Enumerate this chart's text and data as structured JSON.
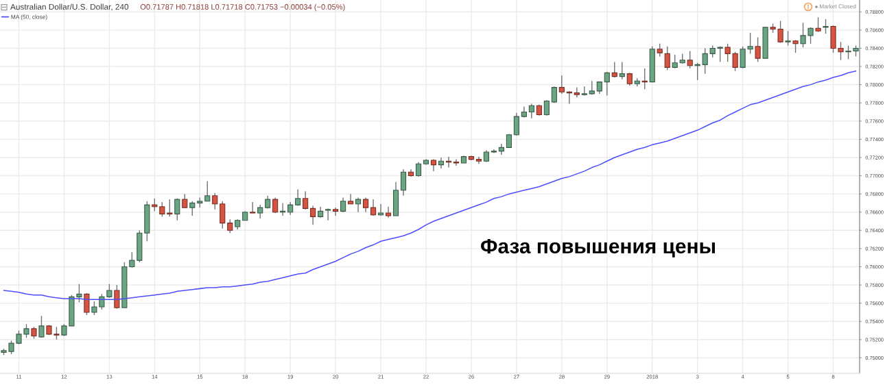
{
  "chart_data": {
    "type": "candlestick",
    "title": "Australian Dollar/U.S. Dollar, 240",
    "subtitle": "O0.71787 H0.71818 L0.71718 C0.71753 −0.00034 (−0.05%)",
    "annotations": [
      "Фаза повышения цены",
      "Market Closed"
    ],
    "categories": [
      null,
      null,
      "11",
      null,
      null,
      null,
      null,
      null,
      "12",
      null,
      null,
      null,
      null,
      null,
      "13",
      null,
      null,
      null,
      null,
      null,
      "14",
      null,
      null,
      null,
      null,
      null,
      "15",
      null,
      null,
      null,
      null,
      null,
      "18",
      null,
      null,
      null,
      null,
      null,
      "19",
      null,
      null,
      null,
      null,
      null,
      "20",
      null,
      null,
      null,
      null,
      null,
      "21",
      null,
      null,
      null,
      null,
      null,
      "22",
      null,
      null,
      null,
      null,
      null,
      "26",
      null,
      null,
      null,
      null,
      null,
      "27",
      null,
      null,
      null,
      null,
      null,
      "28",
      null,
      null,
      null,
      null,
      null,
      "29",
      null,
      null,
      null,
      null,
      null,
      "2018",
      null,
      null,
      null,
      null,
      null,
      "3",
      null,
      null,
      null,
      null,
      null,
      "4",
      null,
      null,
      null,
      null,
      null,
      "5",
      null,
      null,
      null,
      null,
      null,
      "8",
      null,
      null,
      null
    ],
    "ohlc": [
      [
        0.7506,
        0.751,
        0.7503,
        0.7508
      ],
      [
        0.7507,
        0.7519,
        0.7504,
        0.7516
      ],
      [
        0.7516,
        0.753,
        0.7515,
        0.7526
      ],
      [
        0.7526,
        0.7537,
        0.7522,
        0.7532
      ],
      [
        0.7532,
        0.7534,
        0.7521,
        0.7524
      ],
      [
        0.7523,
        0.7546,
        0.7522,
        0.7535
      ],
      [
        0.7535,
        0.7536,
        0.7525,
        0.7526
      ],
      [
        0.7526,
        0.7534,
        0.752,
        0.7525
      ],
      [
        0.7525,
        0.7537,
        0.7524,
        0.7535
      ],
      [
        0.7535,
        0.7569,
        0.7535,
        0.7567
      ],
      [
        0.7567,
        0.7581,
        0.7561,
        0.757
      ],
      [
        0.757,
        0.7571,
        0.7547,
        0.755
      ],
      [
        0.755,
        0.7562,
        0.7547,
        0.7556
      ],
      [
        0.7556,
        0.757,
        0.7553,
        0.7567
      ],
      [
        0.7567,
        0.7581,
        0.7566,
        0.7574
      ],
      [
        0.7574,
        0.758,
        0.7554,
        0.7555
      ],
      [
        0.7555,
        0.7605,
        0.7555,
        0.76
      ],
      [
        0.76,
        0.7616,
        0.7599,
        0.7607
      ],
      [
        0.7607,
        0.764,
        0.7605,
        0.7637
      ],
      [
        0.7637,
        0.7672,
        0.7628,
        0.7668
      ],
      [
        0.7668,
        0.7675,
        0.7661,
        0.7666
      ],
      [
        0.7666,
        0.7671,
        0.7655,
        0.7658
      ],
      [
        0.7659,
        0.7674,
        0.7655,
        0.7658
      ],
      [
        0.7658,
        0.7675,
        0.7651,
        0.7674
      ],
      [
        0.7674,
        0.768,
        0.7665,
        0.7665
      ],
      [
        0.7665,
        0.7672,
        0.7656,
        0.767
      ],
      [
        0.767,
        0.7676,
        0.7665,
        0.7672
      ],
      [
        0.7672,
        0.7694,
        0.7672,
        0.7678
      ],
      [
        0.7678,
        0.7681,
        0.7663,
        0.7669
      ],
      [
        0.7669,
        0.7672,
        0.7642,
        0.7648
      ],
      [
        0.7648,
        0.7652,
        0.7637,
        0.764
      ],
      [
        0.7644,
        0.7652,
        0.7641,
        0.7651
      ],
      [
        0.7651,
        0.7661,
        0.7651,
        0.766
      ],
      [
        0.766,
        0.7671,
        0.7659,
        0.7659
      ],
      [
        0.7659,
        0.7668,
        0.7653,
        0.7665
      ],
      [
        0.7665,
        0.7678,
        0.7664,
        0.7674
      ],
      [
        0.7674,
        0.7676,
        0.7659,
        0.766
      ],
      [
        0.766,
        0.767,
        0.7656,
        0.7661
      ],
      [
        0.766,
        0.7671,
        0.7657,
        0.7668
      ],
      [
        0.7668,
        0.7685,
        0.7667,
        0.7675
      ],
      [
        0.7675,
        0.7683,
        0.7663,
        0.7664
      ],
      [
        0.7664,
        0.7667,
        0.7646,
        0.7655
      ],
      [
        0.7655,
        0.7666,
        0.7654,
        0.7661
      ],
      [
        0.7662,
        0.7664,
        0.7651,
        0.7663
      ],
      [
        0.7663,
        0.7665,
        0.7656,
        0.7661
      ],
      [
        0.7661,
        0.7676,
        0.766,
        0.7672
      ],
      [
        0.7672,
        0.768,
        0.7669,
        0.7669
      ],
      [
        0.7669,
        0.7676,
        0.766,
        0.7674
      ],
      [
        0.7674,
        0.7676,
        0.766,
        0.7665
      ],
      [
        0.7665,
        0.7674,
        0.7656,
        0.7657
      ],
      [
        0.7657,
        0.7669,
        0.7656,
        0.7659
      ],
      [
        0.7659,
        0.7666,
        0.7654,
        0.7656
      ],
      [
        0.7656,
        0.7693,
        0.7656,
        0.7684
      ],
      [
        0.7684,
        0.7707,
        0.7678,
        0.7704
      ],
      [
        0.7704,
        0.7707,
        0.7699,
        0.77
      ],
      [
        0.77,
        0.7715,
        0.7699,
        0.7713
      ],
      [
        0.7713,
        0.7718,
        0.7712,
        0.7717
      ],
      [
        0.7717,
        0.7718,
        0.7705,
        0.7712
      ],
      [
        0.7712,
        0.772,
        0.7708,
        0.7716
      ],
      [
        0.7716,
        0.7721,
        0.7709,
        0.7715
      ],
      [
        0.7715,
        0.7718,
        0.7711,
        0.7714
      ],
      [
        0.7714,
        0.7722,
        0.7714,
        0.7721
      ],
      [
        0.7721,
        0.7722,
        0.7717,
        0.7718
      ],
      [
        0.7718,
        0.7721,
        0.7713,
        0.7716
      ],
      [
        0.7716,
        0.7728,
        0.7715,
        0.7726
      ],
      [
        0.7726,
        0.7729,
        0.7725,
        0.7727
      ],
      [
        0.7727,
        0.7735,
        0.7723,
        0.7731
      ],
      [
        0.7731,
        0.7746,
        0.7731,
        0.7745
      ],
      [
        0.7745,
        0.7769,
        0.7744,
        0.7765
      ],
      [
        0.7765,
        0.7776,
        0.7764,
        0.777
      ],
      [
        0.777,
        0.7779,
        0.7763,
        0.7777
      ],
      [
        0.7777,
        0.7778,
        0.7766,
        0.7767
      ],
      [
        0.7767,
        0.7783,
        0.7766,
        0.7782
      ],
      [
        0.7781,
        0.7798,
        0.778,
        0.7797
      ],
      [
        0.7797,
        0.781,
        0.779,
        0.7792
      ],
      [
        0.7792,
        0.7793,
        0.7779,
        0.7791
      ],
      [
        0.7791,
        0.7797,
        0.7786,
        0.7789
      ],
      [
        0.7789,
        0.7798,
        0.7788,
        0.779
      ],
      [
        0.779,
        0.7804,
        0.7789,
        0.7793
      ],
      [
        0.7793,
        0.7803,
        0.779,
        0.7803
      ],
      [
        0.7803,
        0.7814,
        0.7788,
        0.7813
      ],
      [
        0.7813,
        0.7825,
        0.7808,
        0.7809
      ],
      [
        0.7809,
        0.7825,
        0.7806,
        0.7812
      ],
      [
        0.7812,
        0.7813,
        0.7799,
        0.7801
      ],
      [
        0.7801,
        0.7807,
        0.7798,
        0.7804
      ],
      [
        0.7804,
        0.7818,
        0.7795,
        0.7803
      ],
      [
        0.7803,
        0.7842,
        0.7803,
        0.7839
      ],
      [
        0.7839,
        0.7845,
        0.7831,
        0.7835
      ],
      [
        0.7834,
        0.7842,
        0.7816,
        0.7819
      ],
      [
        0.7819,
        0.7833,
        0.7818,
        0.7824
      ],
      [
        0.7824,
        0.7834,
        0.7823,
        0.7827
      ],
      [
        0.7827,
        0.7837,
        0.7818,
        0.7821
      ],
      [
        0.7821,
        0.7824,
        0.7805,
        0.7822
      ],
      [
        0.7822,
        0.784,
        0.7812,
        0.7834
      ],
      [
        0.7834,
        0.7843,
        0.783,
        0.784
      ],
      [
        0.784,
        0.7842,
        0.7825,
        0.7841
      ],
      [
        0.7841,
        0.7845,
        0.7825,
        0.7834
      ],
      [
        0.7834,
        0.7836,
        0.7815,
        0.7819
      ],
      [
        0.7819,
        0.7842,
        0.7818,
        0.7839
      ],
      [
        0.7839,
        0.7857,
        0.7834,
        0.7842
      ],
      [
        0.7842,
        0.7852,
        0.7825,
        0.7829
      ],
      [
        0.7829,
        0.7863,
        0.7829,
        0.7863
      ],
      [
        0.7863,
        0.7867,
        0.7857,
        0.7861
      ],
      [
        0.7861,
        0.787,
        0.7846,
        0.7847
      ],
      [
        0.7847,
        0.7859,
        0.7843,
        0.7848
      ],
      [
        0.7848,
        0.7849,
        0.7835,
        0.7845
      ],
      [
        0.7845,
        0.7868,
        0.7841,
        0.7854
      ],
      [
        0.7854,
        0.7863,
        0.7845,
        0.7862
      ],
      [
        0.7862,
        0.7874,
        0.7858,
        0.7859
      ],
      [
        0.7863,
        0.7872,
        0.7856,
        0.7864
      ],
      [
        0.7864,
        0.7865,
        0.7835,
        0.784
      ],
      [
        0.784,
        0.7847,
        0.7827,
        0.7836
      ],
      [
        0.7836,
        0.7843,
        0.7828,
        0.7837
      ],
      [
        0.7837,
        0.7843,
        0.7831,
        0.784
      ]
    ],
    "colors": [
      "#6ba583",
      "#6ba583",
      "#6ba583",
      "#6ba583",
      "#d75442",
      "#6ba583",
      "#d75442",
      "#d75442",
      "#6ba583",
      "#6ba583",
      "#6ba583",
      "#d75442",
      "#6ba583",
      "#6ba583",
      "#6ba583",
      "#d75442",
      "#6ba583",
      "#6ba583",
      "#6ba583",
      "#6ba583",
      "#d75442",
      "#d75442",
      "#d75442",
      "#6ba583",
      "#d75442",
      "#6ba583",
      "#6ba583",
      "#6ba583",
      "#d75442",
      "#d75442",
      "#d75442",
      "#6ba583",
      "#6ba583",
      "#d75442",
      "#6ba583",
      "#6ba583",
      "#d75442",
      "#6ba583",
      "#6ba583",
      "#6ba583",
      "#d75442",
      "#d75442",
      "#6ba583",
      "#6ba583",
      "#d75442",
      "#6ba583",
      "#d75442",
      "#6ba583",
      "#d75442",
      "#d75442",
      "#6ba583",
      "#d75442",
      "#6ba583",
      "#6ba583",
      "#d75442",
      "#6ba583",
      "#6ba583",
      "#d75442",
      "#6ba583",
      "#d75442",
      "#d75442",
      "#6ba583",
      "#d75442",
      "#d75442",
      "#6ba583",
      "#6ba583",
      "#6ba583",
      "#6ba583",
      "#6ba583",
      "#6ba583",
      "#6ba583",
      "#d75442",
      "#6ba583",
      "#6ba583",
      "#d75442",
      "#d75442",
      "#d75442",
      "#6ba583",
      "#6ba583",
      "#6ba583",
      "#6ba583",
      "#d75442",
      "#6ba583",
      "#d75442",
      "#6ba583",
      "#d75442",
      "#6ba583",
      "#d75442",
      "#d75442",
      "#6ba583",
      "#6ba583",
      "#d75442",
      "#6ba583",
      "#6ba583",
      "#6ba583",
      "#6ba583",
      "#d75442",
      "#d75442",
      "#6ba583",
      "#6ba583",
      "#d75442",
      "#6ba583",
      "#d75442",
      "#d75442",
      "#6ba583",
      "#d75442",
      "#6ba583",
      "#6ba583",
      "#d75442",
      "#6ba583",
      "#d75442",
      "#d75442",
      "#6ba583",
      "#6ba583"
    ],
    "series": [
      {
        "type": "line",
        "name": "MA (50, close)",
        "color": "#4d4dff",
        "values": [
          0.7574,
          0.7573,
          0.7572,
          0.757,
          0.7569,
          0.7569,
          0.7567,
          0.7566,
          0.7565,
          0.7565,
          0.7565,
          0.7564,
          0.7564,
          0.7564,
          0.7564,
          0.7564,
          0.7565,
          0.7566,
          0.7567,
          0.7568,
          0.7569,
          0.757,
          0.7571,
          0.7573,
          0.7574,
          0.7575,
          0.7576,
          0.7577,
          0.7577,
          0.7578,
          0.7578,
          0.7579,
          0.758,
          0.7581,
          0.7583,
          0.7584,
          0.7586,
          0.7588,
          0.759,
          0.7592,
          0.7593,
          0.7597,
          0.76,
          0.7603,
          0.7606,
          0.761,
          0.7614,
          0.7617,
          0.7621,
          0.7624,
          0.7628,
          0.763,
          0.7632,
          0.7634,
          0.7637,
          0.7641,
          0.7646,
          0.765,
          0.7653,
          0.7656,
          0.7659,
          0.7662,
          0.7665,
          0.7668,
          0.7671,
          0.7675,
          0.7677,
          0.768,
          0.7682,
          0.7684,
          0.7686,
          0.7688,
          0.7691,
          0.7694,
          0.7697,
          0.7699,
          0.7702,
          0.7705,
          0.7709,
          0.7712,
          0.7716,
          0.772,
          0.7723,
          0.7726,
          0.7729,
          0.7731,
          0.7734,
          0.7736,
          0.7738,
          0.7741,
          0.7744,
          0.7747,
          0.775,
          0.7754,
          0.7758,
          0.7761,
          0.7766,
          0.777,
          0.7774,
          0.7778,
          0.778,
          0.7783,
          0.7786,
          0.7789,
          0.7792,
          0.7795,
          0.7798,
          0.78,
          0.7803,
          0.7805,
          0.7808,
          0.781,
          0.7813,
          0.7815
        ]
      }
    ],
    "ylim": [
      0.7483,
      0.7893
    ],
    "yticks": [
      {
        "value": 0.75,
        "label": "0.75000"
      },
      {
        "value": 0.752,
        "label": "0.75200"
      },
      {
        "value": 0.754,
        "label": "0.75400"
      },
      {
        "value": 0.756,
        "label": "0.75600"
      },
      {
        "value": 0.758,
        "label": "0.75800"
      },
      {
        "value": 0.76,
        "label": "0.76000"
      },
      {
        "value": 0.762,
        "label": "0.76200"
      },
      {
        "value": 0.764,
        "label": "0.76400"
      },
      {
        "value": 0.766,
        "label": "0.76600"
      },
      {
        "value": 0.768,
        "label": "0.76800"
      },
      {
        "value": 0.77,
        "label": "0.77000"
      },
      {
        "value": 0.772,
        "label": "0.77200"
      },
      {
        "value": 0.774,
        "label": "0.77400"
      },
      {
        "value": 0.776,
        "label": "0.77600"
      },
      {
        "value": 0.778,
        "label": "0.77800"
      },
      {
        "value": 0.78,
        "label": "0.78000"
      },
      {
        "value": 0.782,
        "label": "0.78200"
      },
      {
        "value": 0.784,
        "label": "0.78400"
      },
      {
        "value": 0.786,
        "label": "0.78600"
      },
      {
        "value": 0.788,
        "label": "0.78800"
      }
    ],
    "grid": true,
    "legend": "top left"
  }
}
